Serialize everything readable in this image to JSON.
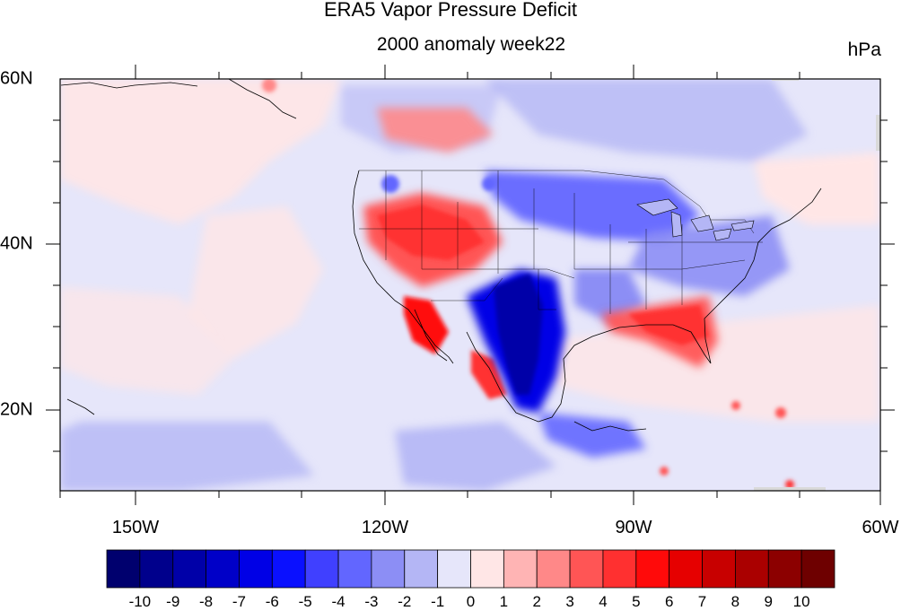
{
  "title": "ERA5 Vapor Pressure Deficit",
  "subtitle": "2000 anomaly week22",
  "units": "hPa",
  "latitude_labels": [
    "60N",
    "40N",
    "20N"
  ],
  "longitude_labels": [
    "150W",
    "120W",
    "90W",
    "60W"
  ],
  "colorbar": {
    "labels": [
      "-10",
      "-9",
      "-8",
      "-7",
      "-6",
      "-5",
      "-4",
      "-3",
      "-2",
      "-1",
      "0",
      "1",
      "2",
      "3",
      "4",
      "5",
      "6",
      "7",
      "8",
      "9",
      "10"
    ],
    "colors": [
      "#00006e",
      "#00008c",
      "#0000a8",
      "#0000c8",
      "#0000e6",
      "#0a10ff",
      "#4040ff",
      "#6266ff",
      "#8c8ef5",
      "#b4b6f5",
      "#e6e6fa",
      "#ffe6e6",
      "#ffb4b4",
      "#ff8888",
      "#ff5555",
      "#ff3030",
      "#ff0a0a",
      "#e60000",
      "#c80000",
      "#aa0000",
      "#8c0000",
      "#6e0000"
    ]
  },
  "map": {
    "projection": "cylindrical equidistant",
    "lon_range": [
      -159,
      -60
    ],
    "lat_range": [
      10,
      60
    ],
    "colors": {
      "ocean_background": "#e6e6fa",
      "coastline": "#000000"
    }
  }
}
